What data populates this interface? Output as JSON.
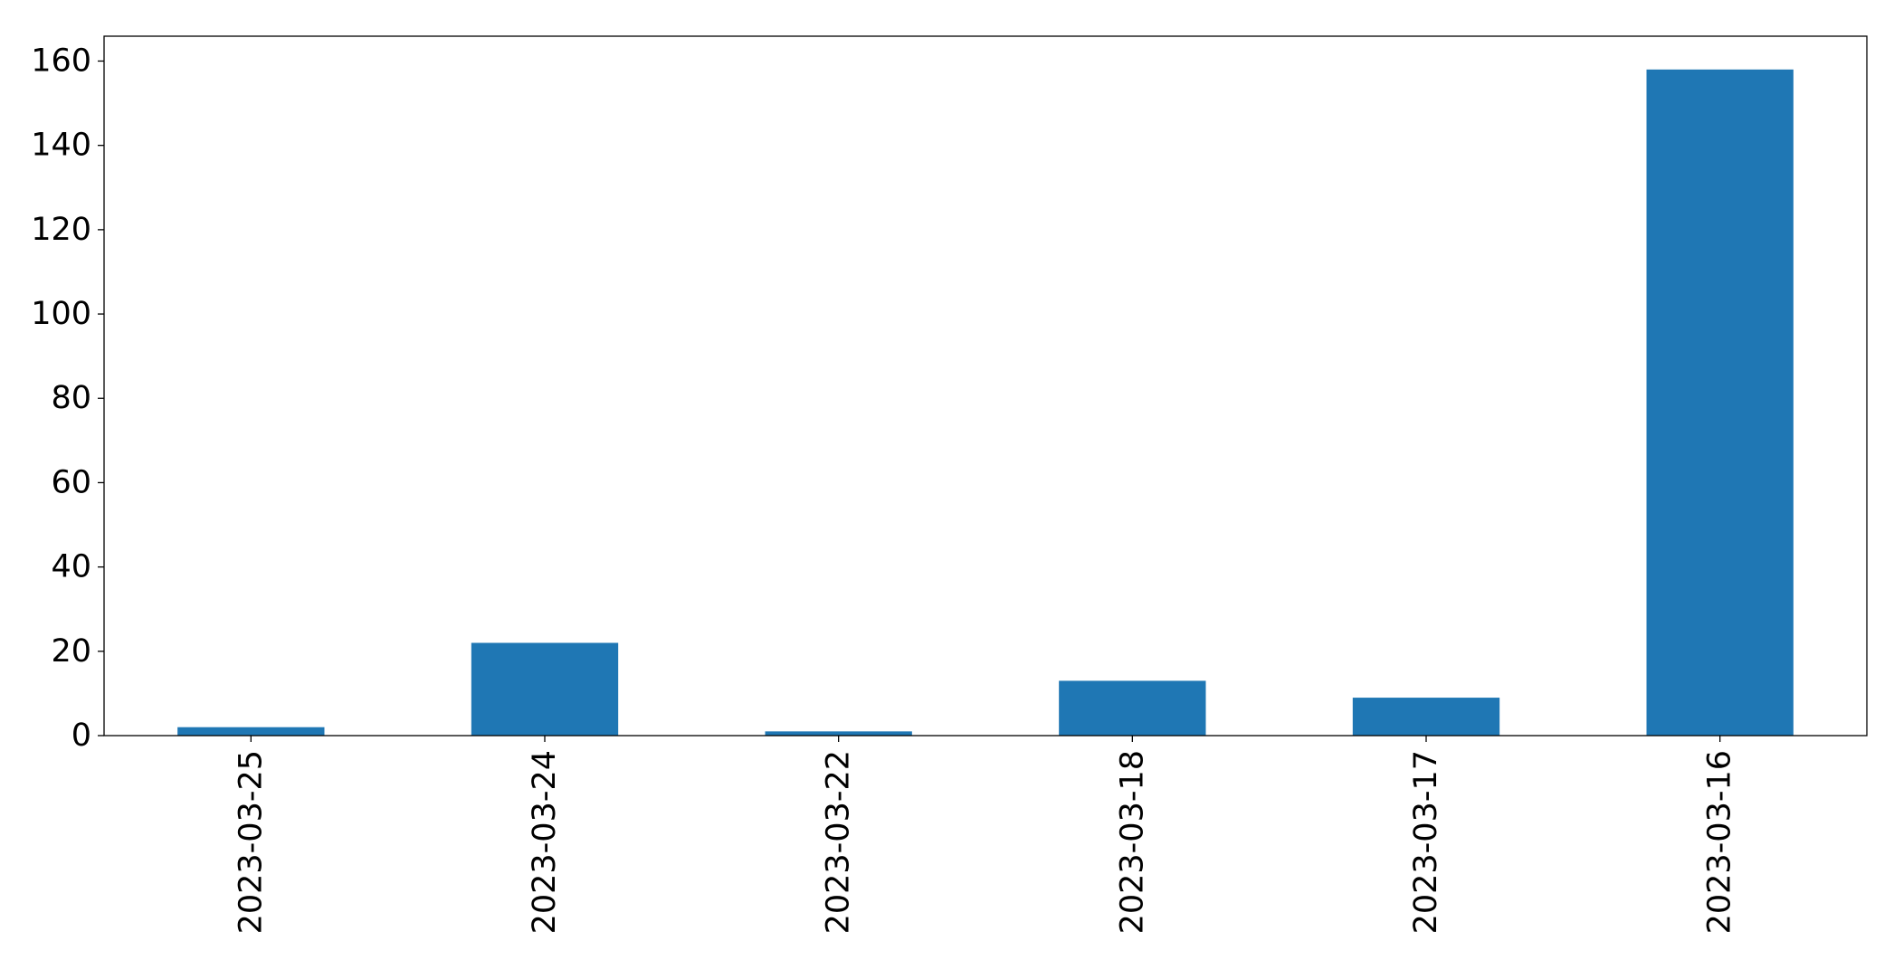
{
  "chart_data": {
    "type": "bar",
    "categories": [
      "2023-03-25",
      "2023-03-24",
      "2023-03-22",
      "2023-03-18",
      "2023-03-17",
      "2023-03-16"
    ],
    "values": [
      2,
      22,
      1,
      13,
      9,
      158
    ],
    "color": "#1f77b4",
    "ylim": [
      0,
      165.9
    ],
    "yticks": [
      0,
      20,
      40,
      60,
      80,
      100,
      120,
      140,
      160
    ],
    "grid": false
  }
}
